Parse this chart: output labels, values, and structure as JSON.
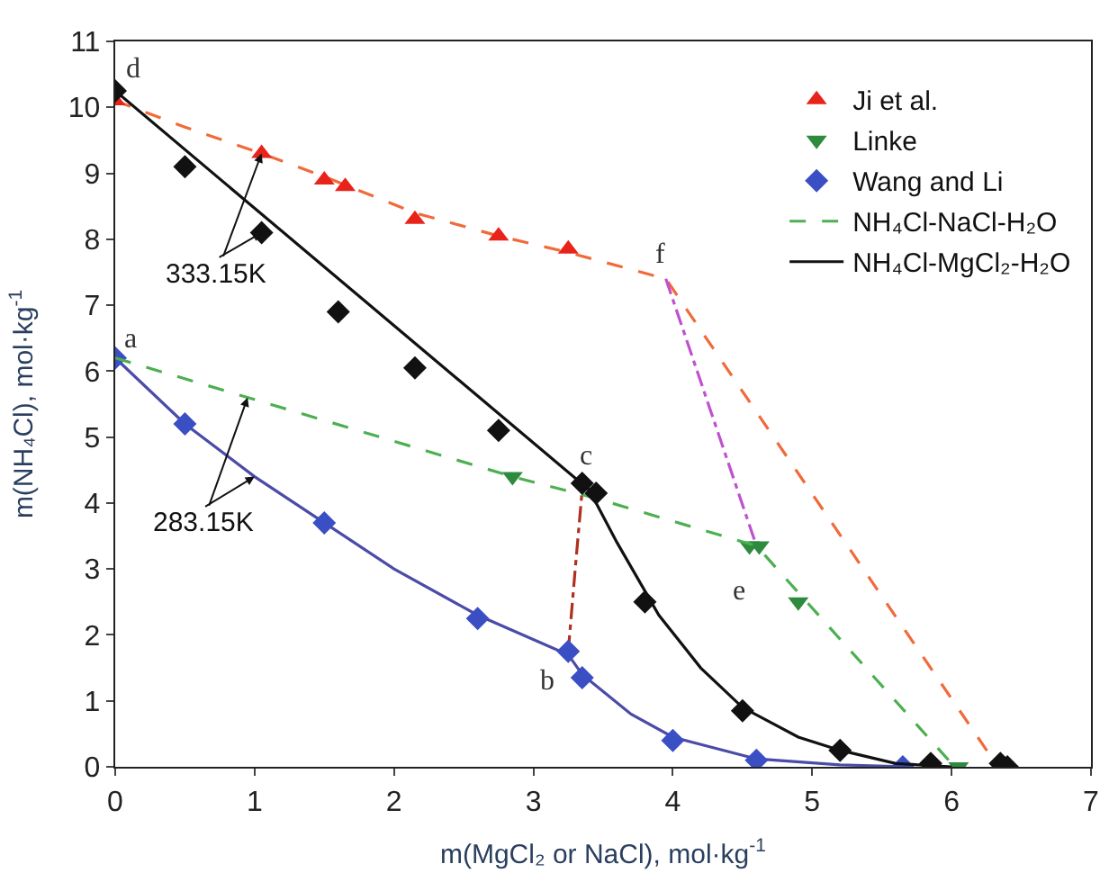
{
  "chart_data": {
    "type": "scatter",
    "xlabel": "m(MgCl₂ or NaCl), mol·kg$^{-1}$",
    "ylabel": "m(NH₄Cl), mol·kg$^{-1}$",
    "xlim": [
      0,
      7
    ],
    "ylim": [
      0,
      11
    ],
    "xticks": [
      0,
      1,
      2,
      3,
      4,
      5,
      6,
      7
    ],
    "yticks": [
      0,
      1,
      2,
      3,
      4,
      5,
      6,
      7,
      8,
      9,
      10,
      11
    ],
    "grid": false,
    "legend": "top right",
    "series": [
      {
        "type": "line",
        "marker": "none",
        "line_style": "dashed",
        "color": "#f06a3a",
        "x": [
          0,
          0.5,
          1.05,
          1.5,
          2.15,
          2.75,
          3.25,
          3.95,
          6.3
        ],
        "values": [
          10.1,
          9.7,
          9.3,
          8.95,
          8.4,
          8.05,
          7.8,
          7.4,
          0.1
        ]
      },
      {
        "type": "line",
        "marker": "none",
        "line_style": "solid",
        "color": "#4b4ba8",
        "x": [
          0,
          0.5,
          1,
          1.5,
          2,
          2.6,
          3.25,
          3.35,
          3.7,
          4,
          4.6,
          5.2,
          5.7
        ],
        "values": [
          6.2,
          5.2,
          4.4,
          3.7,
          3.0,
          2.3,
          1.7,
          1.4,
          0.8,
          0.45,
          0.12,
          0.03,
          0
        ]
      },
      {
        "type": "line",
        "marker": "none",
        "line_style": "dashdot",
        "color": "#b03020",
        "x": [
          3.25,
          3.3,
          3.35
        ],
        "values": [
          1.75,
          3.0,
          4.2
        ]
      },
      {
        "type": "line",
        "marker": "none",
        "line_style": "dashdot",
        "color": "#c050d0",
        "x": [
          3.95,
          4.6
        ],
        "values": [
          7.4,
          3.35
        ]
      },
      {
        "name": "Ji et al.",
        "marker": "triangle",
        "color": "#e8231a",
        "x": [
          0,
          1.05,
          1.5,
          1.65,
          2.15,
          2.75,
          3.25
        ],
        "values": [
          10.1,
          9.3,
          8.9,
          8.8,
          8.3,
          8.05,
          7.85
        ]
      },
      {
        "name": "Linke",
        "marker": "triangle-down",
        "color": "#2e8b3e",
        "x": [
          2.85,
          4.55,
          4.62,
          4.9,
          6.05
        ],
        "values": [
          4.4,
          3.35,
          3.35,
          2.5,
          0.0
        ]
      },
      {
        "name": "Wang and Li",
        "marker": "diamond",
        "color": "#3b4fc4",
        "x": [
          0,
          0.5,
          1.5,
          2.6,
          3.25,
          3.35,
          4.0,
          4.6,
          5.65
        ],
        "values": [
          6.2,
          5.2,
          3.7,
          2.25,
          1.75,
          1.35,
          0.4,
          0.1,
          0.0
        ]
      },
      {
        "name": "NH₄Cl-NaCl-H₂O",
        "type": "line",
        "marker": "none",
        "line_style": "dashed",
        "color": "#4caf50",
        "x": [
          0,
          2.85,
          3.4,
          4.6,
          6.0
        ],
        "values": [
          6.2,
          4.4,
          4.1,
          3.35,
          0.05
        ]
      },
      {
        "name": "NH₄Cl-MgCl₂-H₂O",
        "type": "line",
        "marker": "none",
        "line_style": "solid",
        "color": "#111111",
        "x": [
          0,
          3.4,
          3.6,
          3.9,
          4.2,
          4.5,
          4.9,
          5.2,
          5.6,
          6.0
        ],
        "values": [
          10.25,
          4.2,
          3.4,
          2.3,
          1.5,
          0.9,
          0.45,
          0.25,
          0.05,
          0
        ]
      },
      {
        "marker": "diamond",
        "color": "#111111",
        "x": [
          0,
          0.5,
          1.05,
          1.6,
          2.15,
          2.75,
          3.35,
          3.45,
          3.8,
          4.5,
          5.2,
          5.85,
          6.35,
          6.4
        ],
        "values": [
          10.25,
          9.1,
          8.1,
          6.9,
          6.05,
          5.1,
          4.3,
          4.15,
          2.5,
          0.85,
          0.25,
          0.05,
          0.05,
          0.0
        ]
      }
    ],
    "annotations": [
      {
        "text": "d",
        "x": 0,
        "y": 10.25
      },
      {
        "text": "a",
        "x": 0,
        "y": 6.2
      },
      {
        "text": "c",
        "x": 3.35,
        "y": 4.3
      },
      {
        "text": "b",
        "x": 3.25,
        "y": 1.75
      },
      {
        "text": "e",
        "x": 4.6,
        "y": 3.35
      },
      {
        "text": "f",
        "x": 3.95,
        "y": 7.4
      },
      {
        "text": "333.15K",
        "x": 1.05,
        "y": 9.3
      },
      {
        "text": "283.15K",
        "x": 0.95,
        "y": 5.6
      }
    ]
  }
}
